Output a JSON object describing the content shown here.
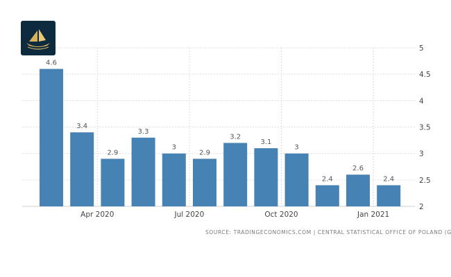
{
  "chart_data": {
    "type": "bar",
    "values": [
      4.6,
      3.4,
      2.9,
      3.3,
      3.0,
      2.9,
      3.2,
      3.1,
      3.0,
      2.4,
      2.6,
      2.4
    ],
    "data_labels": [
      "4.6",
      "3.4",
      "2.9",
      "3.3",
      "3",
      "2.9",
      "3.2",
      "3.1",
      "3",
      "2.4",
      "2.6",
      "2.4"
    ],
    "x_ticks": [
      {
        "label": "Apr 2020",
        "index": 1.5
      },
      {
        "label": "Jul 2020",
        "index": 4.5
      },
      {
        "label": "Oct 2020",
        "index": 7.5
      },
      {
        "label": "Jan 2021",
        "index": 10.5
      }
    ],
    "y_ticks": [
      "2",
      "2.5",
      "3",
      "3.5",
      "4",
      "4.5",
      "5"
    ],
    "ylim": [
      2,
      5
    ],
    "title": "",
    "xlabel": "",
    "ylabel": "",
    "grid": true,
    "bar_color": "#4682b4"
  },
  "source_text": "SOURCE: TRADINGECONOMICS.COM | CENTRAL STATISTICAL OFFICE OF POLAND (GUS)",
  "logo": {
    "icon": "ship-logo-icon",
    "background": "#0d2a3f",
    "accent": "#d8b25a"
  }
}
